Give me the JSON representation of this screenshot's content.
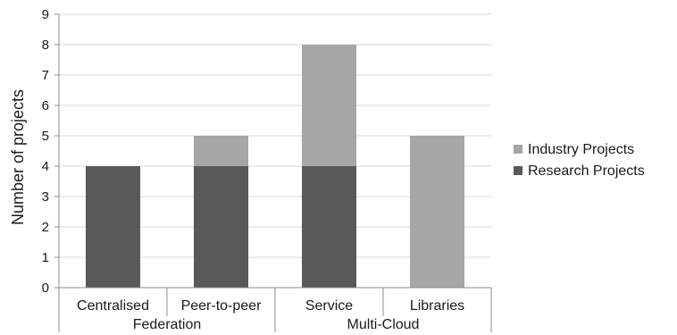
{
  "chart_data": {
    "type": "bar",
    "stacked": true,
    "categories": [
      "Centralised",
      "Peer-to-peer",
      "Service",
      "Libraries"
    ],
    "groups": [
      {
        "label": "Federation",
        "categories": [
          "Centralised",
          "Peer-to-peer"
        ]
      },
      {
        "label": "Multi-Cloud",
        "categories": [
          "Service",
          "Libraries"
        ]
      }
    ],
    "series": [
      {
        "name": "Research Projects",
        "color": "#595959",
        "values": [
          4,
          4,
          4,
          0
        ]
      },
      {
        "name": "Industry Projects",
        "color": "#a6a6a6",
        "values": [
          0,
          1,
          4,
          5
        ]
      }
    ],
    "title": "",
    "xlabel": "",
    "ylabel": "Number of projects",
    "ylim": [
      0,
      9
    ],
    "yticks": [
      "0",
      "1",
      "2",
      "3",
      "4",
      "5",
      "6",
      "7",
      "8",
      "9"
    ],
    "grid": true,
    "legend": {
      "position": "right",
      "entries": [
        "Industry Projects",
        "Research Projects"
      ]
    }
  }
}
